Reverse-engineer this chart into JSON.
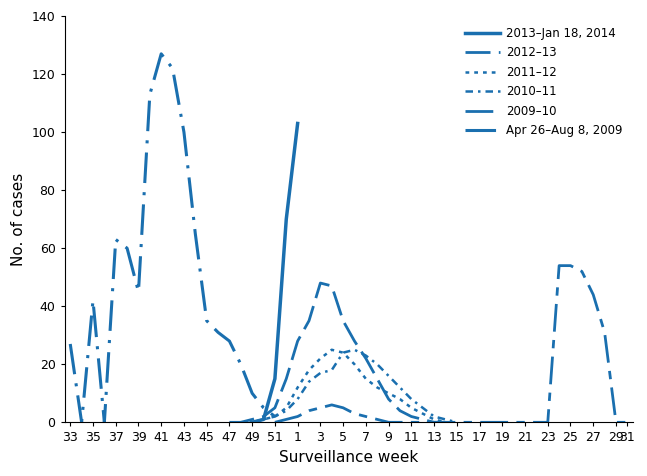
{
  "color": "#1a6faf",
  "xlabel": "Surveillance week",
  "ylabel": "No. of cases",
  "ylim": [
    0,
    140
  ],
  "yticks": [
    0,
    20,
    40,
    60,
    80,
    100,
    120,
    140
  ],
  "x_tick_positions": [
    0,
    2,
    4,
    6,
    8,
    10,
    12,
    14,
    16,
    18,
    20,
    22,
    24,
    26,
    28,
    30,
    32,
    34,
    36,
    38,
    40,
    42,
    44,
    46,
    48
  ],
  "x_tick_labels": [
    "33",
    "35",
    "37",
    "39",
    "41",
    "43",
    "45",
    "47",
    "49",
    "51",
    "1",
    "3",
    "5",
    "7",
    "9",
    "11",
    "13",
    "15",
    "17",
    "19",
    "21",
    "23",
    "25",
    "27",
    "29"
  ],
  "xlim": [
    -0.5,
    49.5
  ],
  "series": [
    {
      "label": "2013–Jan 18, 2014",
      "linestyle": "solid",
      "linewidth": 2.5,
      "dashes": null,
      "x": [
        16,
        17,
        18,
        19,
        20
      ],
      "y": [
        0,
        1,
        15,
        70,
        103
      ]
    },
    {
      "label": "2012–13",
      "linestyle": "dashed",
      "linewidth": 2.0,
      "dashes": [
        9,
        3
      ],
      "x": [
        14,
        15,
        16,
        17,
        18,
        19,
        20,
        21,
        22,
        23,
        24,
        25,
        26,
        27,
        28,
        29,
        30,
        31,
        32,
        33
      ],
      "y": [
        0,
        0,
        1,
        2,
        5,
        15,
        28,
        35,
        48,
        47,
        35,
        28,
        22,
        15,
        8,
        4,
        2,
        1,
        0,
        0
      ]
    },
    {
      "label": "2011–12",
      "linestyle": "dotted",
      "linewidth": 1.8,
      "dashes": [
        1.5,
        2
      ],
      "x": [
        15,
        16,
        17,
        18,
        19,
        20,
        21,
        22,
        23,
        24,
        25,
        26,
        27,
        28,
        29,
        30,
        31,
        32,
        33
      ],
      "y": [
        0,
        0,
        1,
        2,
        5,
        12,
        18,
        22,
        25,
        24,
        20,
        15,
        12,
        10,
        8,
        5,
        3,
        1,
        0
      ]
    },
    {
      "label": "2010–11",
      "linestyle": "dashdot",
      "linewidth": 1.8,
      "dashes": [
        3,
        2,
        1,
        2
      ],
      "x": [
        16,
        17,
        18,
        19,
        20,
        21,
        22,
        23,
        24,
        25,
        26,
        27,
        28,
        29,
        30,
        31,
        32,
        33,
        34
      ],
      "y": [
        0,
        1,
        2,
        4,
        8,
        14,
        17,
        18,
        24,
        25,
        23,
        20,
        16,
        12,
        8,
        5,
        2,
        1,
        0
      ]
    },
    {
      "label": "2009–10",
      "linestyle": "dashed",
      "linewidth": 2.0,
      "dashes": [
        10,
        3,
        3,
        3
      ],
      "x": [
        18,
        19,
        20,
        21,
        22,
        23,
        24,
        25,
        26,
        27,
        28,
        29,
        30,
        31,
        32,
        33,
        34,
        35,
        36,
        37,
        38,
        39,
        40,
        41,
        42,
        43,
        44,
        45,
        46,
        47,
        48,
        49
      ],
      "y": [
        0,
        1,
        2,
        4,
        5,
        6,
        5,
        3,
        2,
        1,
        0,
        0,
        0,
        0,
        0,
        0,
        0,
        0,
        0,
        0,
        0,
        0,
        0,
        0,
        0,
        54,
        54,
        52,
        44,
        31,
        0,
        0
      ]
    },
    {
      "label": "Apr 26–Aug 8, 2009",
      "linestyle": "dashdot",
      "linewidth": 2.2,
      "dashes": [
        10,
        3,
        1,
        3
      ],
      "x": [
        0,
        1,
        2,
        3,
        4,
        5,
        6,
        7,
        8,
        9,
        10,
        11,
        12,
        13,
        14,
        15,
        16,
        17,
        18
      ],
      "y": [
        27,
        0,
        42,
        0,
        63,
        60,
        45,
        113,
        127,
        122,
        100,
        65,
        35,
        31,
        28,
        20,
        10,
        5,
        2
      ]
    }
  ]
}
